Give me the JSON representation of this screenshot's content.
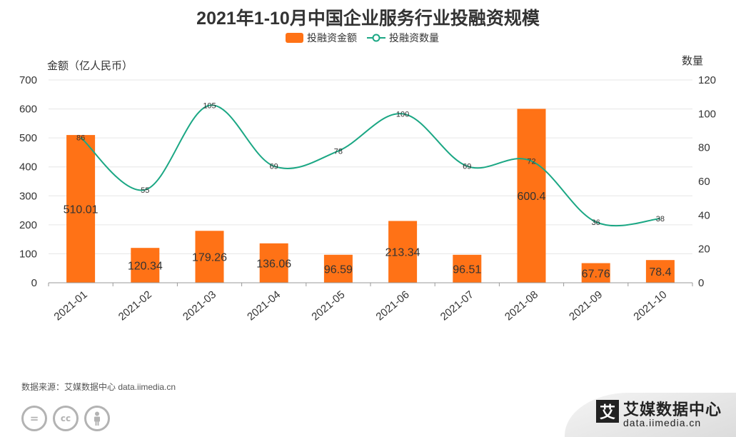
{
  "title": "2021年1-10月中国企业服务行业投融资规模",
  "legend": {
    "bar_label": "投融资金额",
    "line_label": "投融资数量"
  },
  "axes": {
    "left_title": "金额（亿人民币）",
    "right_title": "数量"
  },
  "source": "数据来源：艾媒数据中心 data.iimedia.cn",
  "brand": {
    "logo_char": "艾",
    "name": "艾媒数据中心",
    "url": "data.iimedia.cn"
  },
  "cc_icons": [
    "equal-icon",
    "cc-icon",
    "person-icon"
  ],
  "colors": {
    "bar": "#FF7216",
    "line": "#1BA784",
    "grid": "#e6e6e6"
  },
  "chart_data": {
    "type": "bar",
    "categories": [
      "2021-01",
      "2021-02",
      "2021-03",
      "2021-04",
      "2021-05",
      "2021-06",
      "2021-07",
      "2021-08",
      "2021-09",
      "2021-10"
    ],
    "series": [
      {
        "name": "投融资金额",
        "type": "bar",
        "axis": "left",
        "values": [
          510.01,
          120.34,
          179.26,
          136.06,
          96.59,
          213.34,
          96.51,
          600.4,
          67.76,
          78.4
        ]
      },
      {
        "name": "投融资数量",
        "type": "line",
        "axis": "right",
        "smooth": true,
        "values": [
          86,
          55,
          105,
          69,
          78,
          100,
          69,
          72,
          36,
          38
        ]
      }
    ],
    "ylabel_left": "金额（亿人民币）",
    "ylabel_right": "数量",
    "ylim_left": [
      0,
      700
    ],
    "yticks_left": [
      0,
      100,
      200,
      300,
      400,
      500,
      600,
      700
    ],
    "ylim_right": [
      0,
      120
    ],
    "yticks_right": [
      0,
      20,
      40,
      60,
      80,
      100,
      120
    ],
    "grid": true,
    "legend_position": "top-center"
  }
}
